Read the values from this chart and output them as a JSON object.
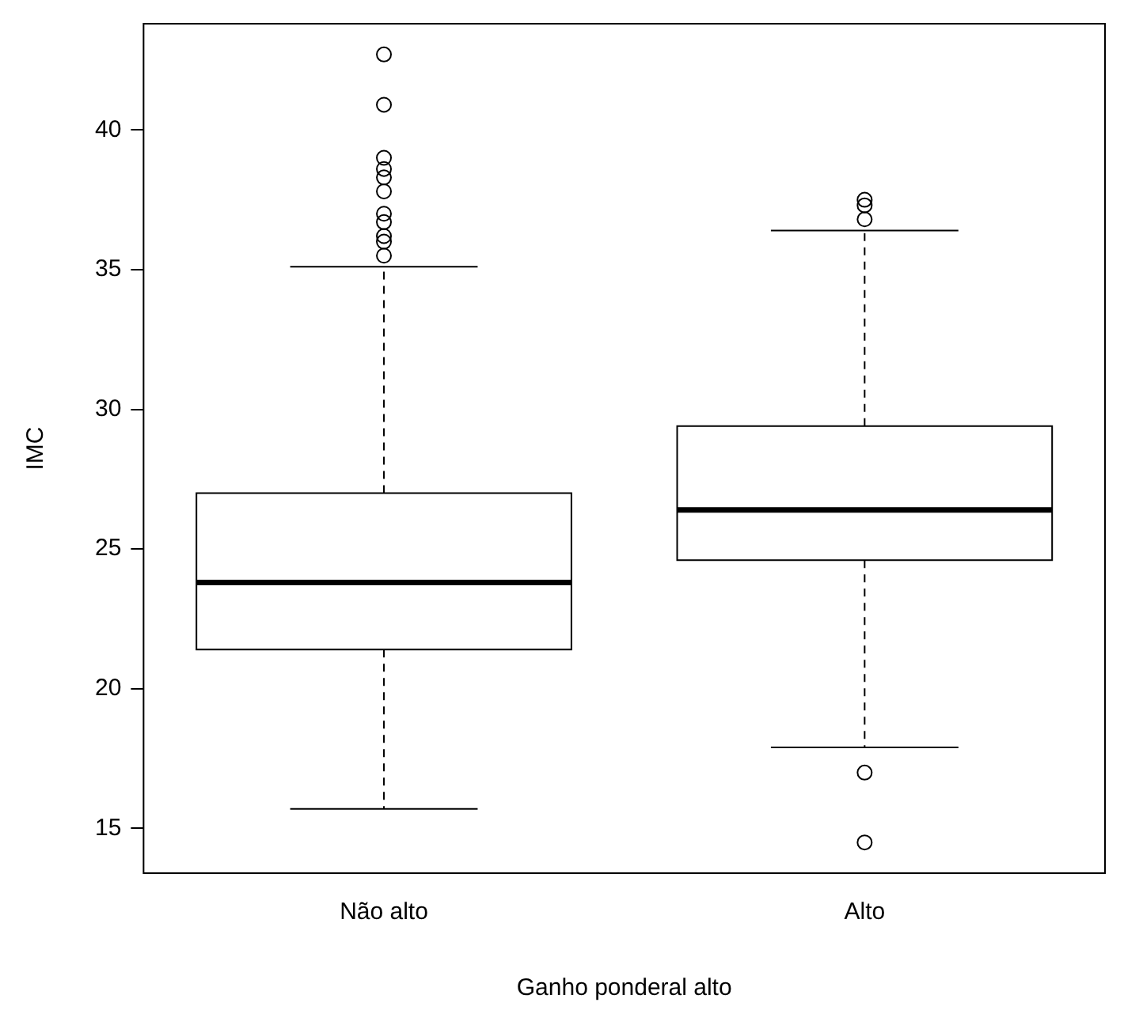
{
  "chart_data": {
    "type": "box",
    "xlabel": "Ganho ponderal alto",
    "ylabel": "IMC",
    "categories": [
      "Não alto",
      "Alto"
    ],
    "color": "#000000",
    "marker": "circle",
    "grid": false,
    "ylim": [
      13.4,
      43.8
    ],
    "yticks": [
      15,
      20,
      25,
      30,
      35,
      40
    ],
    "boxes": [
      {
        "low": 15.7,
        "q1": 21.4,
        "median": 23.8,
        "q3": 27.0,
        "high": 35.1,
        "outliers": [
          42.7,
          40.9,
          39.0,
          38.6,
          38.3,
          37.8,
          37.0,
          36.7,
          36.2,
          36.0,
          35.5
        ]
      },
      {
        "low": 17.9,
        "q1": 24.6,
        "median": 26.4,
        "q3": 29.4,
        "high": 36.4,
        "outliers": [
          37.5,
          37.3,
          36.8,
          17.0,
          14.5
        ]
      }
    ]
  }
}
